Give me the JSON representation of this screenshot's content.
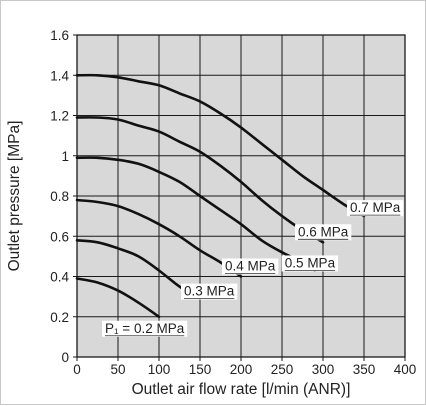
{
  "chart_data": {
    "type": "line",
    "title": "",
    "xlabel": "Outlet air flow rate [l/min (ANR)]",
    "ylabel": "Outlet pressure [MPa]",
    "xlim": [
      0,
      400
    ],
    "ylim": [
      0,
      1.6
    ],
    "x_ticks": [
      "0",
      "50",
      "100",
      "150",
      "200",
      "250",
      "300",
      "350",
      "400"
    ],
    "y_ticks": [
      "0",
      "0.2",
      "0.4",
      "0.6",
      "0.8",
      "1",
      "1.2",
      "1.4",
      "1.6"
    ],
    "grid": true,
    "plot_background": "#d8d8d8",
    "grid_color": "#1a1a1a",
    "curve_color": "#111111",
    "series": [
      {
        "name": "P₁ = 0.2 MPa",
        "label": "P₁ = 0.2 MPa",
        "points": [
          [
            0,
            0.39
          ],
          [
            25,
            0.37
          ],
          [
            50,
            0.33
          ],
          [
            75,
            0.27
          ],
          [
            100,
            0.2
          ]
        ]
      },
      {
        "name": "0.3 MPa",
        "label": "0.3 MPa",
        "points": [
          [
            0,
            0.58
          ],
          [
            25,
            0.57
          ],
          [
            50,
            0.54
          ],
          [
            75,
            0.5
          ],
          [
            100,
            0.43
          ],
          [
            125,
            0.35
          ],
          [
            150,
            0.29
          ]
        ]
      },
      {
        "name": "0.4 MPa",
        "label": "0.4 MPa",
        "points": [
          [
            0,
            0.78
          ],
          [
            25,
            0.77
          ],
          [
            50,
            0.75
          ],
          [
            75,
            0.71
          ],
          [
            100,
            0.66
          ],
          [
            125,
            0.6
          ],
          [
            150,
            0.53
          ],
          [
            175,
            0.47
          ],
          [
            200,
            0.4
          ]
        ]
      },
      {
        "name": "0.5 MPa",
        "label": "0.5 MPa",
        "points": [
          [
            0,
            0.99
          ],
          [
            25,
            0.99
          ],
          [
            50,
            0.98
          ],
          [
            75,
            0.96
          ],
          [
            100,
            0.92
          ],
          [
            125,
            0.87
          ],
          [
            150,
            0.8
          ],
          [
            175,
            0.73
          ],
          [
            200,
            0.66
          ],
          [
            225,
            0.58
          ],
          [
            250,
            0.52
          ],
          [
            275,
            0.47
          ],
          [
            290,
            0.43
          ]
        ]
      },
      {
        "name": "0.6 MPa",
        "label": "0.6 MPa",
        "points": [
          [
            0,
            1.19
          ],
          [
            25,
            1.19
          ],
          [
            50,
            1.18
          ],
          [
            75,
            1.15
          ],
          [
            100,
            1.12
          ],
          [
            125,
            1.07
          ],
          [
            150,
            1.02
          ],
          [
            175,
            0.95
          ],
          [
            200,
            0.87
          ],
          [
            225,
            0.78
          ],
          [
            250,
            0.7
          ],
          [
            275,
            0.63
          ],
          [
            300,
            0.57
          ]
        ]
      },
      {
        "name": "0.7 MPa",
        "label": "0.7 MPa",
        "points": [
          [
            0,
            1.4
          ],
          [
            25,
            1.4
          ],
          [
            50,
            1.39
          ],
          [
            75,
            1.37
          ],
          [
            100,
            1.35
          ],
          [
            125,
            1.31
          ],
          [
            150,
            1.27
          ],
          [
            175,
            1.21
          ],
          [
            200,
            1.14
          ],
          [
            225,
            1.06
          ],
          [
            250,
            0.98
          ],
          [
            275,
            0.9
          ],
          [
            300,
            0.83
          ],
          [
            325,
            0.76
          ],
          [
            350,
            0.7
          ]
        ]
      }
    ]
  }
}
